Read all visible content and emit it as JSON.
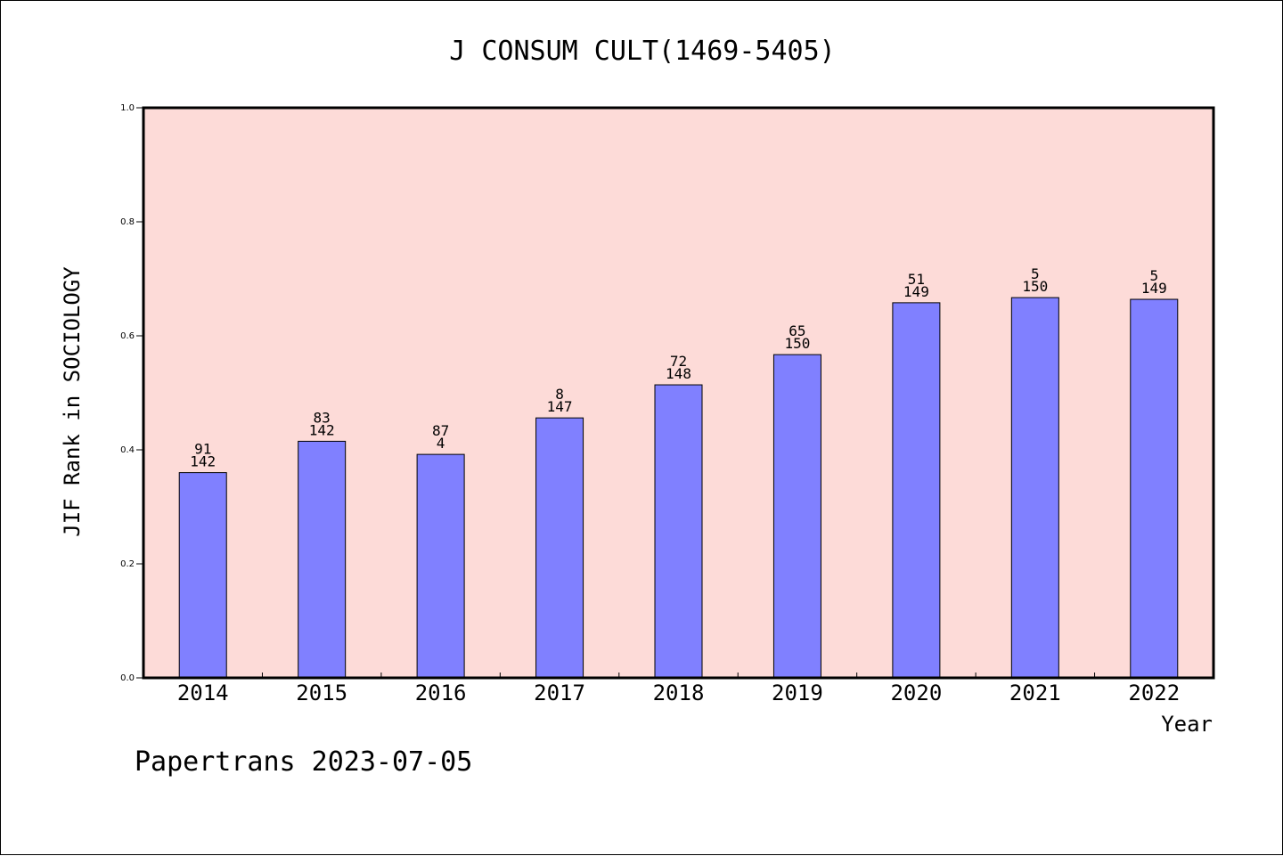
{
  "chart_data": {
    "type": "bar",
    "title": "J CONSUM CULT(1469-5405)",
    "xlabel": "Year",
    "ylabel": "JIF Rank in SOCIOLOGY",
    "ylim": [
      0,
      1.0
    ],
    "yticks": [
      "0.0",
      "0.2",
      "0.4",
      "0.6",
      "0.8",
      "1.0"
    ],
    "categories": [
      "2014",
      "2015",
      "2016",
      "2017",
      "2018",
      "2019",
      "2020",
      "2021",
      "2022"
    ],
    "values": [
      0.36,
      0.415,
      0.392,
      0.456,
      0.514,
      0.567,
      0.658,
      0.667,
      0.664
    ],
    "bar_labels": [
      [
        "91",
        "142"
      ],
      [
        "83",
        "142"
      ],
      [
        "87",
        "4"
      ],
      [
        "8",
        "147"
      ],
      [
        "72",
        "148"
      ],
      [
        "65",
        "150"
      ],
      [
        "51",
        "149"
      ],
      [
        "5",
        "150"
      ],
      [
        "5",
        "149"
      ]
    ],
    "grid": false,
    "colors": {
      "bar_fill": "#8080ff",
      "plot_background": "#fddbd8",
      "axis": "#000000"
    }
  },
  "footer": "Papertrans 2023-07-05"
}
